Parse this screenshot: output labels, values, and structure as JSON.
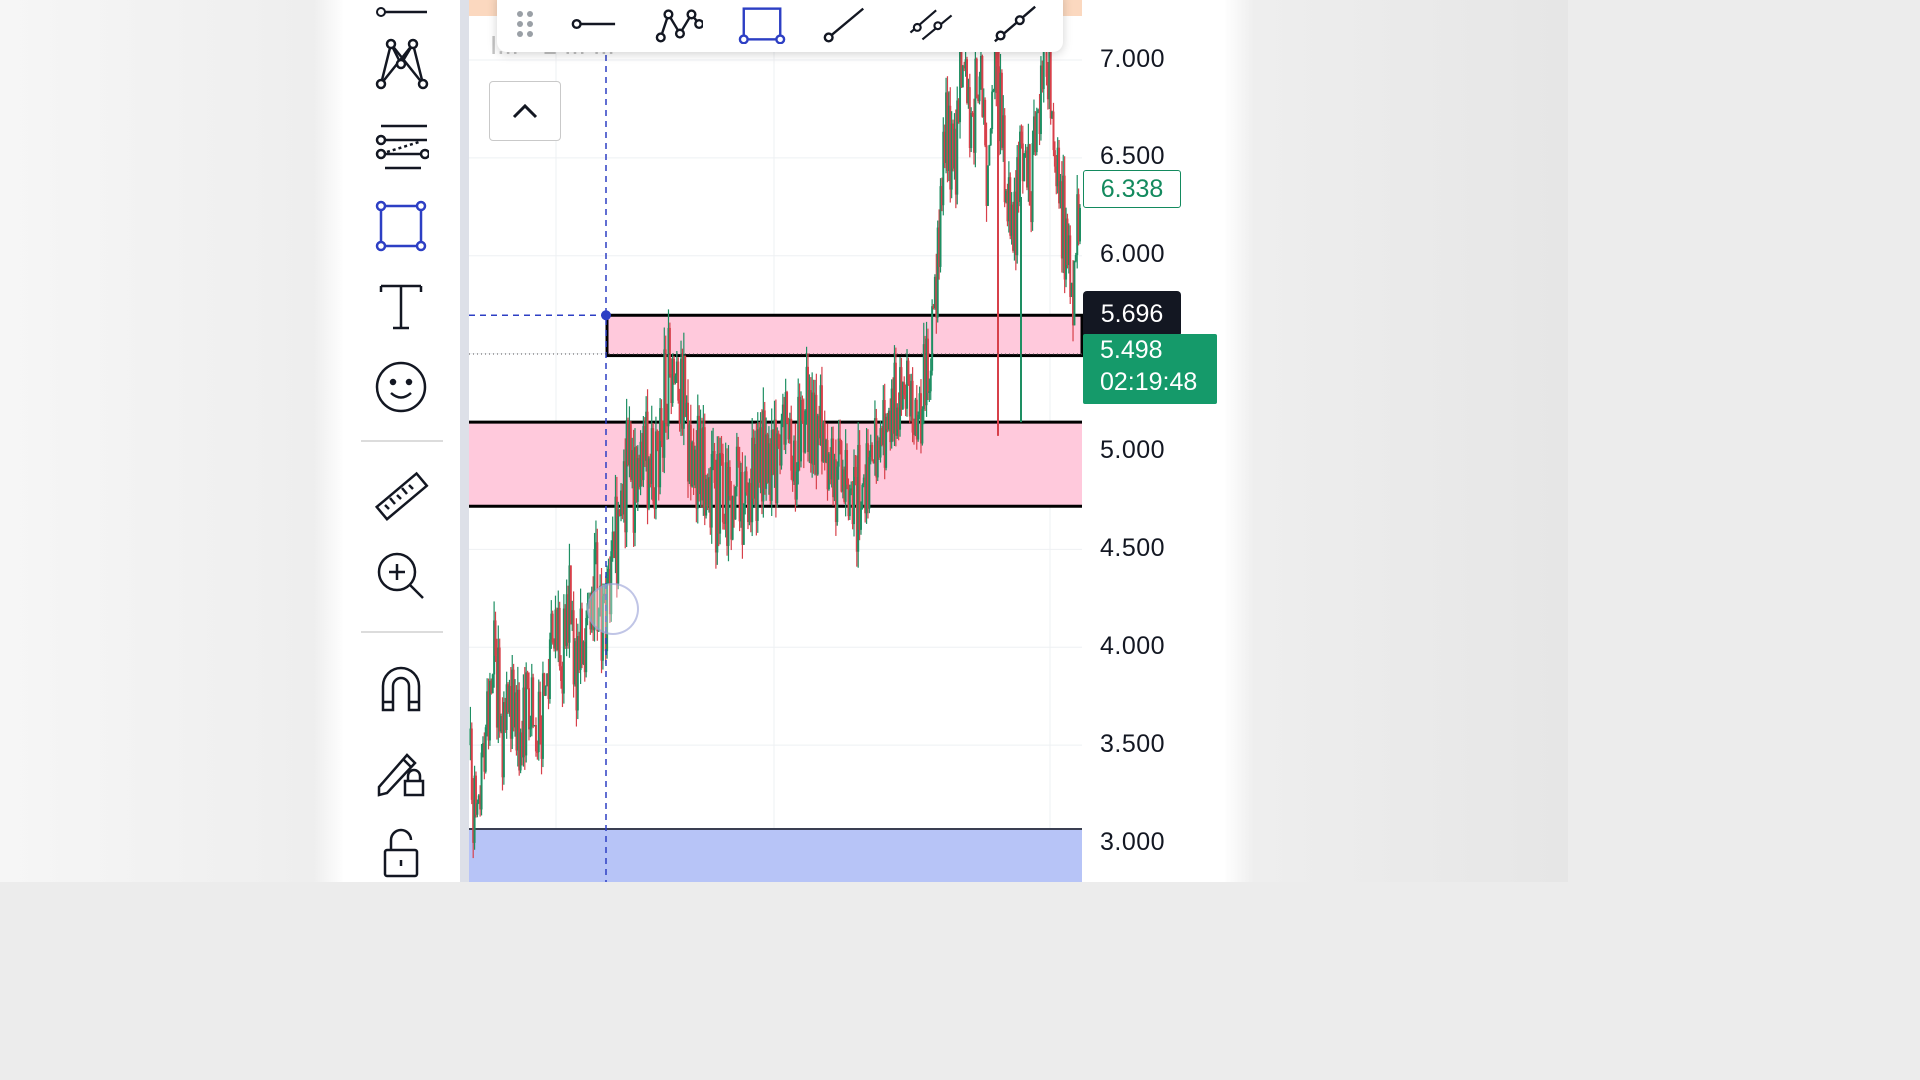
{
  "price_axis": {
    "ticks": [
      "7.000",
      "6.500",
      "6.000",
      "5.000",
      "4.500",
      "4.000",
      "3.500",
      "3.000"
    ],
    "last_price": "6.338",
    "crosshair_price": "5.696",
    "current_price": "5.498",
    "countdown": "02:19:48"
  },
  "top_ghost_text": "I... • 1 ... ...",
  "left_toolbar": {
    "items": [
      {
        "name": "pattern-tool"
      },
      {
        "name": "fib-retracement-tool"
      },
      {
        "name": "rectangle-tool",
        "active": true
      },
      {
        "name": "text-tool"
      },
      {
        "name": "emoji-tool"
      },
      {
        "name": "ruler-tool"
      },
      {
        "name": "zoom-in-tool"
      },
      {
        "name": "magnet-tool"
      },
      {
        "name": "lock-drawing-tool"
      },
      {
        "name": "unlock-tool"
      }
    ]
  },
  "floating_toolbar": {
    "items": [
      "drag-handle",
      "horizontal-line",
      "path-tool",
      "rectangle-tool",
      "trend-line",
      "parallel-channel",
      "extended-line"
    ]
  },
  "colors": {
    "up_candle": "#1e8f63",
    "down_candle": "#d7404a",
    "zone_fill": "#ffc9dc",
    "accent_blue": "#2d3fc4",
    "current_price_bg": "#159a6a"
  },
  "chart_data": {
    "type": "candlestick",
    "yaxis_range": [
      2.9,
      7.3
    ],
    "zones": [
      {
        "top": 5.696,
        "bottom": 5.49
      },
      {
        "top": 5.15,
        "bottom": 4.72
      }
    ],
    "price_series": [
      [
        0,
        3.5
      ],
      [
        4,
        3.3
      ],
      [
        8,
        3.7
      ],
      [
        12,
        4.05
      ],
      [
        16,
        3.7
      ],
      [
        20,
        3.9
      ],
      [
        24,
        3.6
      ],
      [
        28,
        3.95
      ],
      [
        32,
        3.7
      ],
      [
        36,
        3.9
      ],
      [
        40,
        4.2
      ],
      [
        44,
        4.1
      ],
      [
        48,
        4.3
      ],
      [
        52,
        4.05
      ],
      [
        56,
        4.2
      ],
      [
        60,
        4.45
      ],
      [
        64,
        4.25
      ],
      [
        68,
        4.5
      ],
      [
        72,
        4.8
      ],
      [
        76,
        5.1
      ],
      [
        80,
        4.9
      ],
      [
        84,
        5.2
      ],
      [
        88,
        4.95
      ],
      [
        92,
        5.3
      ],
      [
        96,
        5.6
      ],
      [
        100,
        5.45
      ],
      [
        104,
        5.3
      ],
      [
        108,
        5.1
      ],
      [
        112,
        5.0
      ],
      [
        116,
        4.85
      ],
      [
        120,
        4.95
      ],
      [
        124,
        4.8
      ],
      [
        128,
        5.0
      ],
      [
        132,
        4.85
      ],
      [
        136,
        5.0
      ],
      [
        140,
        5.1
      ],
      [
        144,
        4.95
      ],
      [
        148,
        5.2
      ],
      [
        152,
        5.3
      ],
      [
        156,
        5.1
      ],
      [
        160,
        5.4
      ],
      [
        164,
        5.2
      ],
      [
        168,
        5.35
      ],
      [
        172,
        5.1
      ],
      [
        176,
        5.0
      ],
      [
        180,
        4.9
      ],
      [
        184,
        4.85
      ],
      [
        188,
        4.95
      ],
      [
        192,
        5.05
      ],
      [
        196,
        5.15
      ],
      [
        200,
        5.3
      ],
      [
        204,
        5.4
      ],
      [
        208,
        5.5
      ],
      [
        212,
        5.4
      ],
      [
        216,
        5.35
      ],
      [
        220,
        5.6
      ],
      [
        224,
        6.2
      ],
      [
        228,
        6.8
      ],
      [
        232,
        6.6
      ],
      [
        236,
        7.1
      ],
      [
        240,
        6.8
      ],
      [
        244,
        7.0
      ],
      [
        248,
        6.6
      ],
      [
        252,
        7.2
      ],
      [
        256,
        6.5
      ],
      [
        260,
        6.2
      ],
      [
        264,
        6.8
      ],
      [
        268,
        6.4
      ],
      [
        272,
        6.9
      ],
      [
        276,
        7.2
      ],
      [
        280,
        6.7
      ],
      [
        284,
        6.3
      ],
      [
        288,
        6.0
      ],
      [
        292,
        6.338
      ]
    ]
  }
}
